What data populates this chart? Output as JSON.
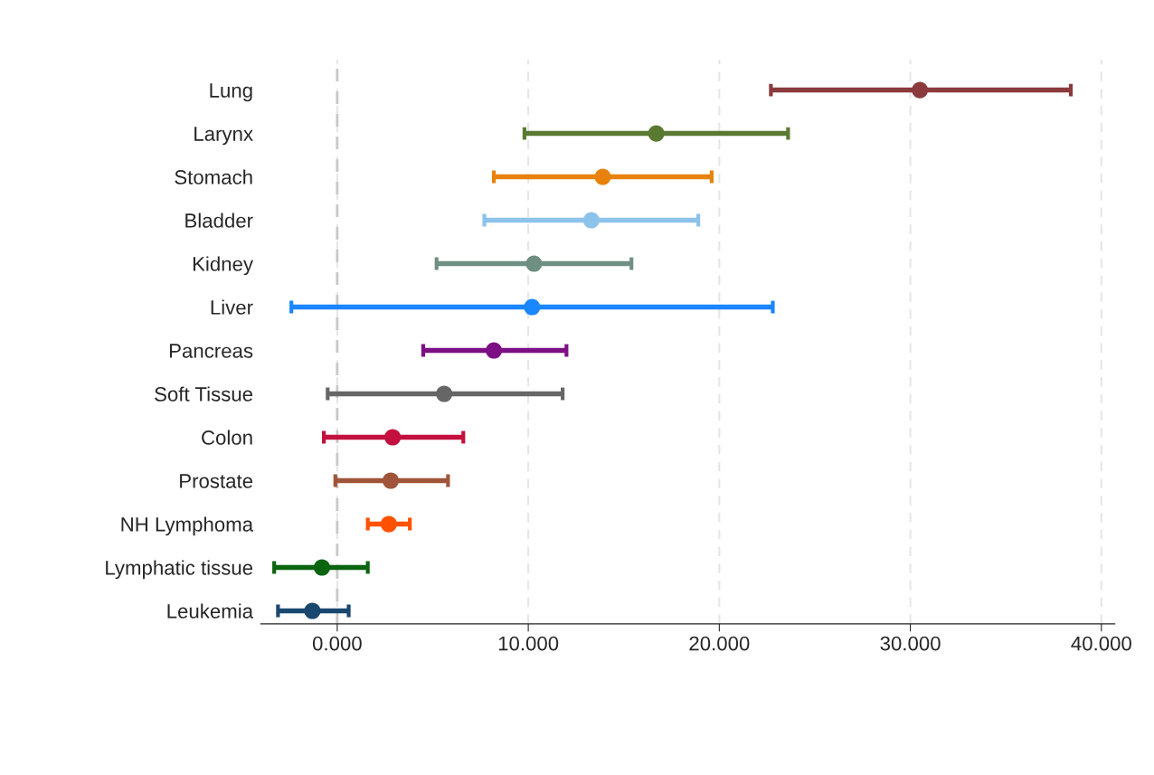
{
  "chart_data": {
    "type": "scatter",
    "orientation": "horizontal",
    "categories": [
      "Lung",
      "Larynx",
      "Stomach",
      "Bladder",
      "Kidney",
      "Liver",
      "Pancreas",
      "Soft Tissue",
      "Colon",
      "Prostate",
      "NH Lymphoma",
      "Lymphatic tissue",
      "Leukemia"
    ],
    "values": [
      30.5,
      16.7,
      13.9,
      13.3,
      10.3,
      10.2,
      8.2,
      5.6,
      2.9,
      2.8,
      2.7,
      -0.8,
      -1.3
    ],
    "errors": [
      [
        22.7,
        38.4
      ],
      [
        9.8,
        23.6
      ],
      [
        8.2,
        19.6
      ],
      [
        7.7,
        18.9
      ],
      [
        5.2,
        15.4
      ],
      [
        -2.4,
        22.8
      ],
      [
        4.5,
        12.0
      ],
      [
        -0.5,
        11.8
      ],
      [
        -0.7,
        6.6
      ],
      [
        -0.1,
        5.8
      ],
      [
        1.6,
        3.8
      ],
      [
        -3.3,
        1.6
      ],
      [
        -3.1,
        0.6
      ]
    ],
    "colors": [
      "#8b3a3e",
      "#5a7a32",
      "#e8820c",
      "#8cc3ea",
      "#6f8f83",
      "#1a86ff",
      "#7d0f85",
      "#666666",
      "#c4103e",
      "#a0553a",
      "#ff5100",
      "#0b6410",
      "#1a476f"
    ],
    "xlim": [
      -4,
      40.7
    ],
    "xticks": [
      {
        "value": 0,
        "label": "0.000"
      },
      {
        "value": 10,
        "label": "10.000"
      },
      {
        "value": 20,
        "label": "20.000"
      },
      {
        "value": 30,
        "label": "30.000"
      },
      {
        "value": 40,
        "label": "40.000"
      }
    ],
    "grid": "x",
    "marker": "circle",
    "ref_lines": [
      {
        "axis": "x",
        "value": 0,
        "color": "#c8c8c8",
        "line_style": "dashed"
      }
    ]
  }
}
